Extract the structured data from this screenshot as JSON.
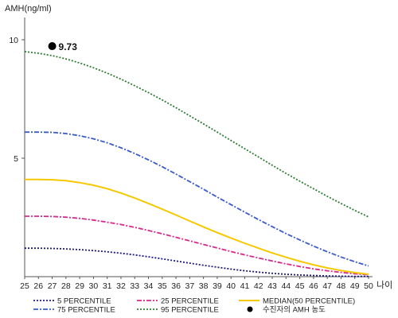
{
  "chart_data": {
    "type": "line",
    "title": "",
    "ylabel": "AMH(ng/ml)",
    "xlabel": "나이",
    "ylim": [
      0,
      11
    ],
    "xlim": [
      25,
      50
    ],
    "x_ticks": [
      25,
      26,
      27,
      28,
      29,
      30,
      31,
      32,
      33,
      34,
      35,
      36,
      37,
      38,
      39,
      40,
      41,
      42,
      43,
      44,
      45,
      46,
      47,
      48,
      49,
      50
    ],
    "y_ticks": [
      5,
      10
    ],
    "grid": false,
    "legend_position": "bottom",
    "x": [
      25,
      26,
      27,
      28,
      29,
      30,
      31,
      32,
      33,
      34,
      35,
      36,
      37,
      38,
      39,
      40,
      41,
      42,
      43,
      44,
      45,
      46,
      47,
      48,
      49,
      50
    ],
    "series": [
      {
        "name": "5 PERCENTILE",
        "color": "#1a1a80",
        "dash": "2,2",
        "values": [
          1.2,
          1.2,
          1.19,
          1.17,
          1.14,
          1.1,
          1.05,
          0.99,
          0.92,
          0.84,
          0.75,
          0.66,
          0.57,
          0.48,
          0.4,
          0.32,
          0.25,
          0.19,
          0.14,
          0.1,
          0.07,
          0.05,
          0.03,
          0.02,
          0.01,
          0.01
        ]
      },
      {
        "name": "25 PERCENTILE",
        "color": "#d62a8a",
        "dash": "6,2,2,2",
        "values": [
          2.55,
          2.55,
          2.54,
          2.51,
          2.46,
          2.39,
          2.3,
          2.2,
          2.08,
          1.95,
          1.81,
          1.66,
          1.51,
          1.36,
          1.21,
          1.06,
          0.92,
          0.79,
          0.66,
          0.54,
          0.43,
          0.33,
          0.25,
          0.18,
          0.12,
          0.08
        ]
      },
      {
        "name": "MEDIAN(50 PERCENTILE)",
        "color": "#f5c800",
        "dash": "",
        "values": [
          4.1,
          4.1,
          4.09,
          4.05,
          3.97,
          3.86,
          3.71,
          3.53,
          3.32,
          3.09,
          2.85,
          2.6,
          2.35,
          2.1,
          1.86,
          1.63,
          1.41,
          1.2,
          1.0,
          0.82,
          0.65,
          0.5,
          0.37,
          0.26,
          0.17,
          0.1
        ]
      },
      {
        "name": "75 PERCENTILE",
        "color": "#3b5bc8",
        "dash": "6,2,2,2",
        "values": [
          6.1,
          6.1,
          6.09,
          6.04,
          5.95,
          5.82,
          5.65,
          5.44,
          5.2,
          4.93,
          4.64,
          4.33,
          4.01,
          3.69,
          3.36,
          3.04,
          2.72,
          2.41,
          2.11,
          1.82,
          1.55,
          1.29,
          1.05,
          0.83,
          0.63,
          0.45
        ]
      },
      {
        "name": "95 PERCENTILE",
        "color": "#2e7d32",
        "dash": "2,2",
        "values": [
          9.5,
          9.43,
          9.33,
          9.19,
          9.02,
          8.82,
          8.59,
          8.34,
          8.06,
          7.77,
          7.46,
          7.13,
          6.79,
          6.45,
          6.1,
          5.75,
          5.4,
          5.05,
          4.7,
          4.36,
          4.03,
          3.71,
          3.39,
          3.09,
          2.8,
          2.52
        ]
      }
    ],
    "highlight_point": {
      "name": "수진자의 AMH 농도",
      "x": 27,
      "y": 9.73,
      "label": "9.73",
      "color": "#000000"
    }
  }
}
